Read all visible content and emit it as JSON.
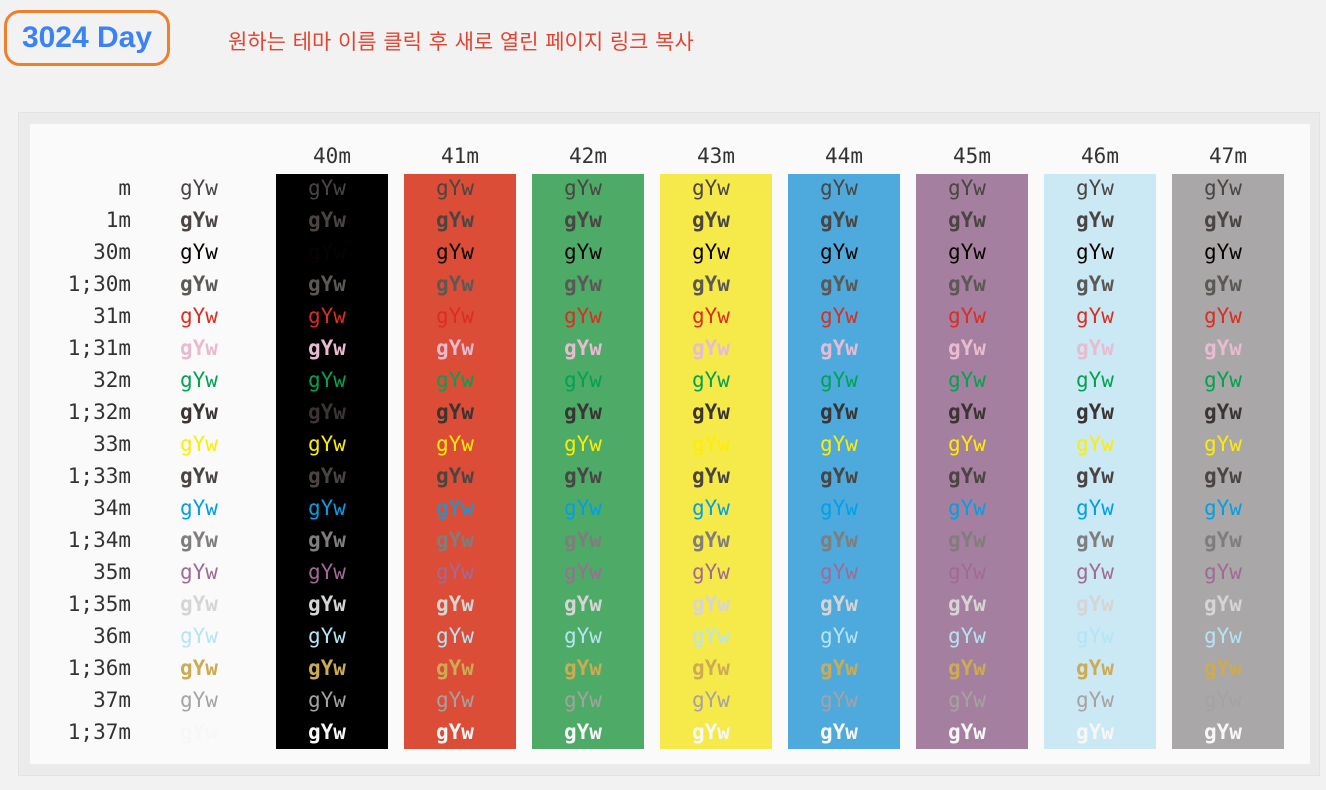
{
  "header": {
    "theme_name": "3024 Day",
    "instruction": "원하는 테마 이름 클릭 후 새로 열린 페이지 링크 복사"
  },
  "table": {
    "sample": "gYw",
    "columns": [
      "40m",
      "41m",
      "42m",
      "43m",
      "44m",
      "45m",
      "46m",
      "47m"
    ],
    "rows": [
      "m",
      "1m",
      "30m",
      "1;30m",
      "31m",
      "1;31m",
      "32m",
      "1;32m",
      "33m",
      "1;33m",
      "34m",
      "1;34m",
      "35m",
      "1;35m",
      "36m",
      "1;36m",
      "37m",
      "1;37m"
    ],
    "background_colors": [
      "#000000",
      "#db4d36",
      "#4eaa67",
      "#f6ea4b",
      "#4eaadd",
      "#a57f9f",
      "#cbe8f5",
      "#a9a7a7"
    ],
    "foreground_colors": {
      "m": "#4a4543",
      "1m": "#4a4543",
      "30m": "#090300",
      "1;30m": "#5c5855",
      "31m": "#db2d20",
      "1;31m": "#e8bbd0",
      "32m": "#01a252",
      "1;32m": "#3a3432",
      "33m": "#fded02",
      "1;33m": "#4a4543",
      "34m": "#01a0e4",
      "1;34m": "#807d7c",
      "35m": "#a16a94",
      "1;35m": "#d6d5d4",
      "36m": "#b5e4f4",
      "1;36m": "#cdab53",
      "37m": "#a5a2a2",
      "1;37m": "#f7f7f7"
    }
  }
}
